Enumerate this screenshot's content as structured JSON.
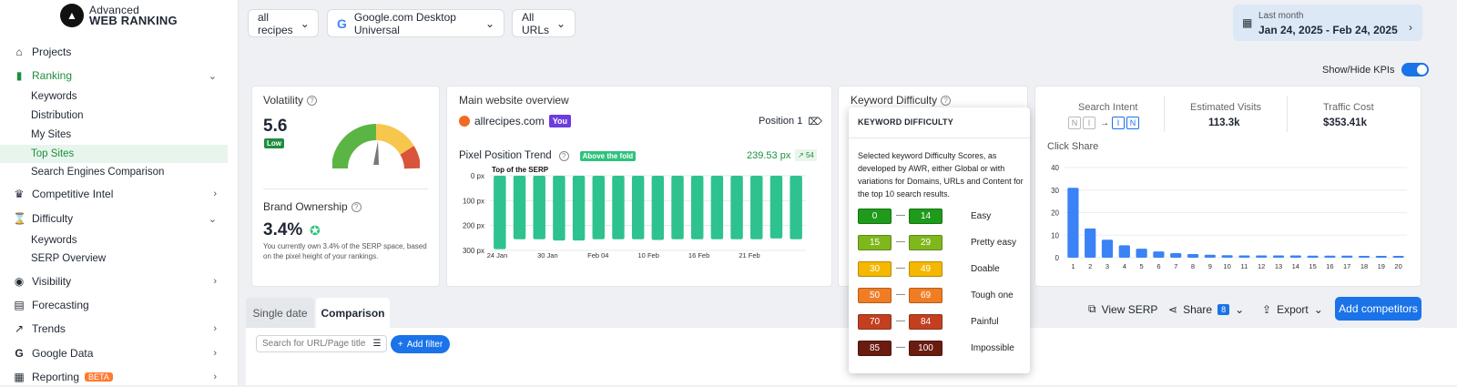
{
  "brand": {
    "line1": "Advanced",
    "line2": "WEB RANKING"
  },
  "sidebar": {
    "projects": "Projects",
    "ranking": "Ranking",
    "ranking_sub": [
      "Keywords",
      "Distribution",
      "My Sites",
      "Top Sites",
      "Search Engines Comparison"
    ],
    "competitive": "Competitive Intel",
    "difficulty": "Difficulty",
    "difficulty_sub": [
      "Keywords",
      "SERP Overview"
    ],
    "visibility": "Visibility",
    "forecasting": "Forecasting",
    "trends": "Trends",
    "google_data": "Google Data",
    "reporting": "Reporting",
    "reporting_badge": "BETA"
  },
  "topbar": {
    "group": "all recipes",
    "engine": "Google.com Desktop Universal",
    "urls": "All URLs",
    "date_label": "Last month",
    "date_range": "Jan 24, 2025 - Feb 24, 2025"
  },
  "kpi_toggle": "Show/Hide KPIs",
  "volatility": {
    "title": "Volatility",
    "value": "5.6",
    "badge": "Low"
  },
  "brand_ownership": {
    "title": "Brand Ownership",
    "value": "3.4%",
    "desc": "You currently own 3.4% of the SERP space, based on the pixel height of your rankings."
  },
  "overview": {
    "title": "Main website overview",
    "site": "allrecipes.com",
    "you": "You",
    "position": "Position 1",
    "trend_title": "Pixel Position Trend",
    "fold_badge": "Above the fold",
    "px_value": "239.53 px",
    "px_change": "54",
    "serp_top": "Top of the SERP"
  },
  "kd_title": "Keyword Difficulty",
  "popup": {
    "title": "KEYWORD DIFFICULTY",
    "desc": "Selected keyword Difficulty Scores, as developed by AWR, either Global or with variations for Domains, URLs and Content for the top 10 search results.",
    "rows": [
      {
        "from": "0",
        "to": "14",
        "label": "Easy",
        "color": "#1f9a1a"
      },
      {
        "from": "15",
        "to": "29",
        "label": "Pretty easy",
        "color": "#7fb71c"
      },
      {
        "from": "30",
        "to": "49",
        "label": "Doable",
        "color": "#f5b800"
      },
      {
        "from": "50",
        "to": "69",
        "label": "Tough one",
        "color": "#f07c24"
      },
      {
        "from": "70",
        "to": "84",
        "label": "Painful",
        "color": "#c2401f"
      },
      {
        "from": "85",
        "to": "100",
        "label": "Impossible",
        "color": "#6a1c10"
      }
    ]
  },
  "intent": {
    "title": "Search Intent",
    "codes_left": [
      "N",
      "I"
    ],
    "codes_right": [
      "I",
      "N"
    ],
    "visits_title": "Estimated Visits",
    "visits": "113.3k",
    "cost_title": "Traffic Cost",
    "cost": "$353.41k",
    "click_share": "Click Share"
  },
  "tabs": {
    "single": "Single date",
    "comparison": "Comparison"
  },
  "actions": {
    "view_serp": "View SERP",
    "share": "Share",
    "share_count": "8",
    "export": "Export",
    "add_competitors": "Add competitors"
  },
  "filter": {
    "search_placeholder": "Search for URL/Page title",
    "add_filter": "Add filter"
  },
  "chart_data": [
    {
      "type": "bar",
      "title": "Pixel Position Trend",
      "ylabel": "",
      "ylim": [
        0,
        300
      ],
      "y_reversed": true,
      "y_ticks": [
        "0 px",
        "100 px",
        "200 px",
        "300 px"
      ],
      "x_ticks": [
        "24 Jan",
        "30 Jan",
        "Feb 04",
        "10 Feb",
        "16 Feb",
        "21 Feb"
      ],
      "values": [
        295,
        255,
        255,
        260,
        260,
        255,
        255,
        255,
        258,
        255,
        255,
        255,
        255,
        255,
        252,
        255
      ]
    },
    {
      "type": "bar",
      "title": "Click Share",
      "ylim": [
        0,
        40
      ],
      "y_ticks": [
        "0",
        "10",
        "20",
        "30",
        "40"
      ],
      "categories": [
        "1",
        "2",
        "3",
        "4",
        "5",
        "6",
        "7",
        "8",
        "9",
        "10",
        "11",
        "12",
        "13",
        "14",
        "15",
        "16",
        "17",
        "18",
        "19",
        "20"
      ],
      "values": [
        31,
        13,
        8,
        5.5,
        4,
        2.8,
        2,
        1.6,
        1.3,
        1.1,
        1,
        1,
        1,
        1,
        0.9,
        0.9,
        0.9,
        0.8,
        0.8,
        0.8
      ],
      "color": "#3b82f6"
    }
  ]
}
